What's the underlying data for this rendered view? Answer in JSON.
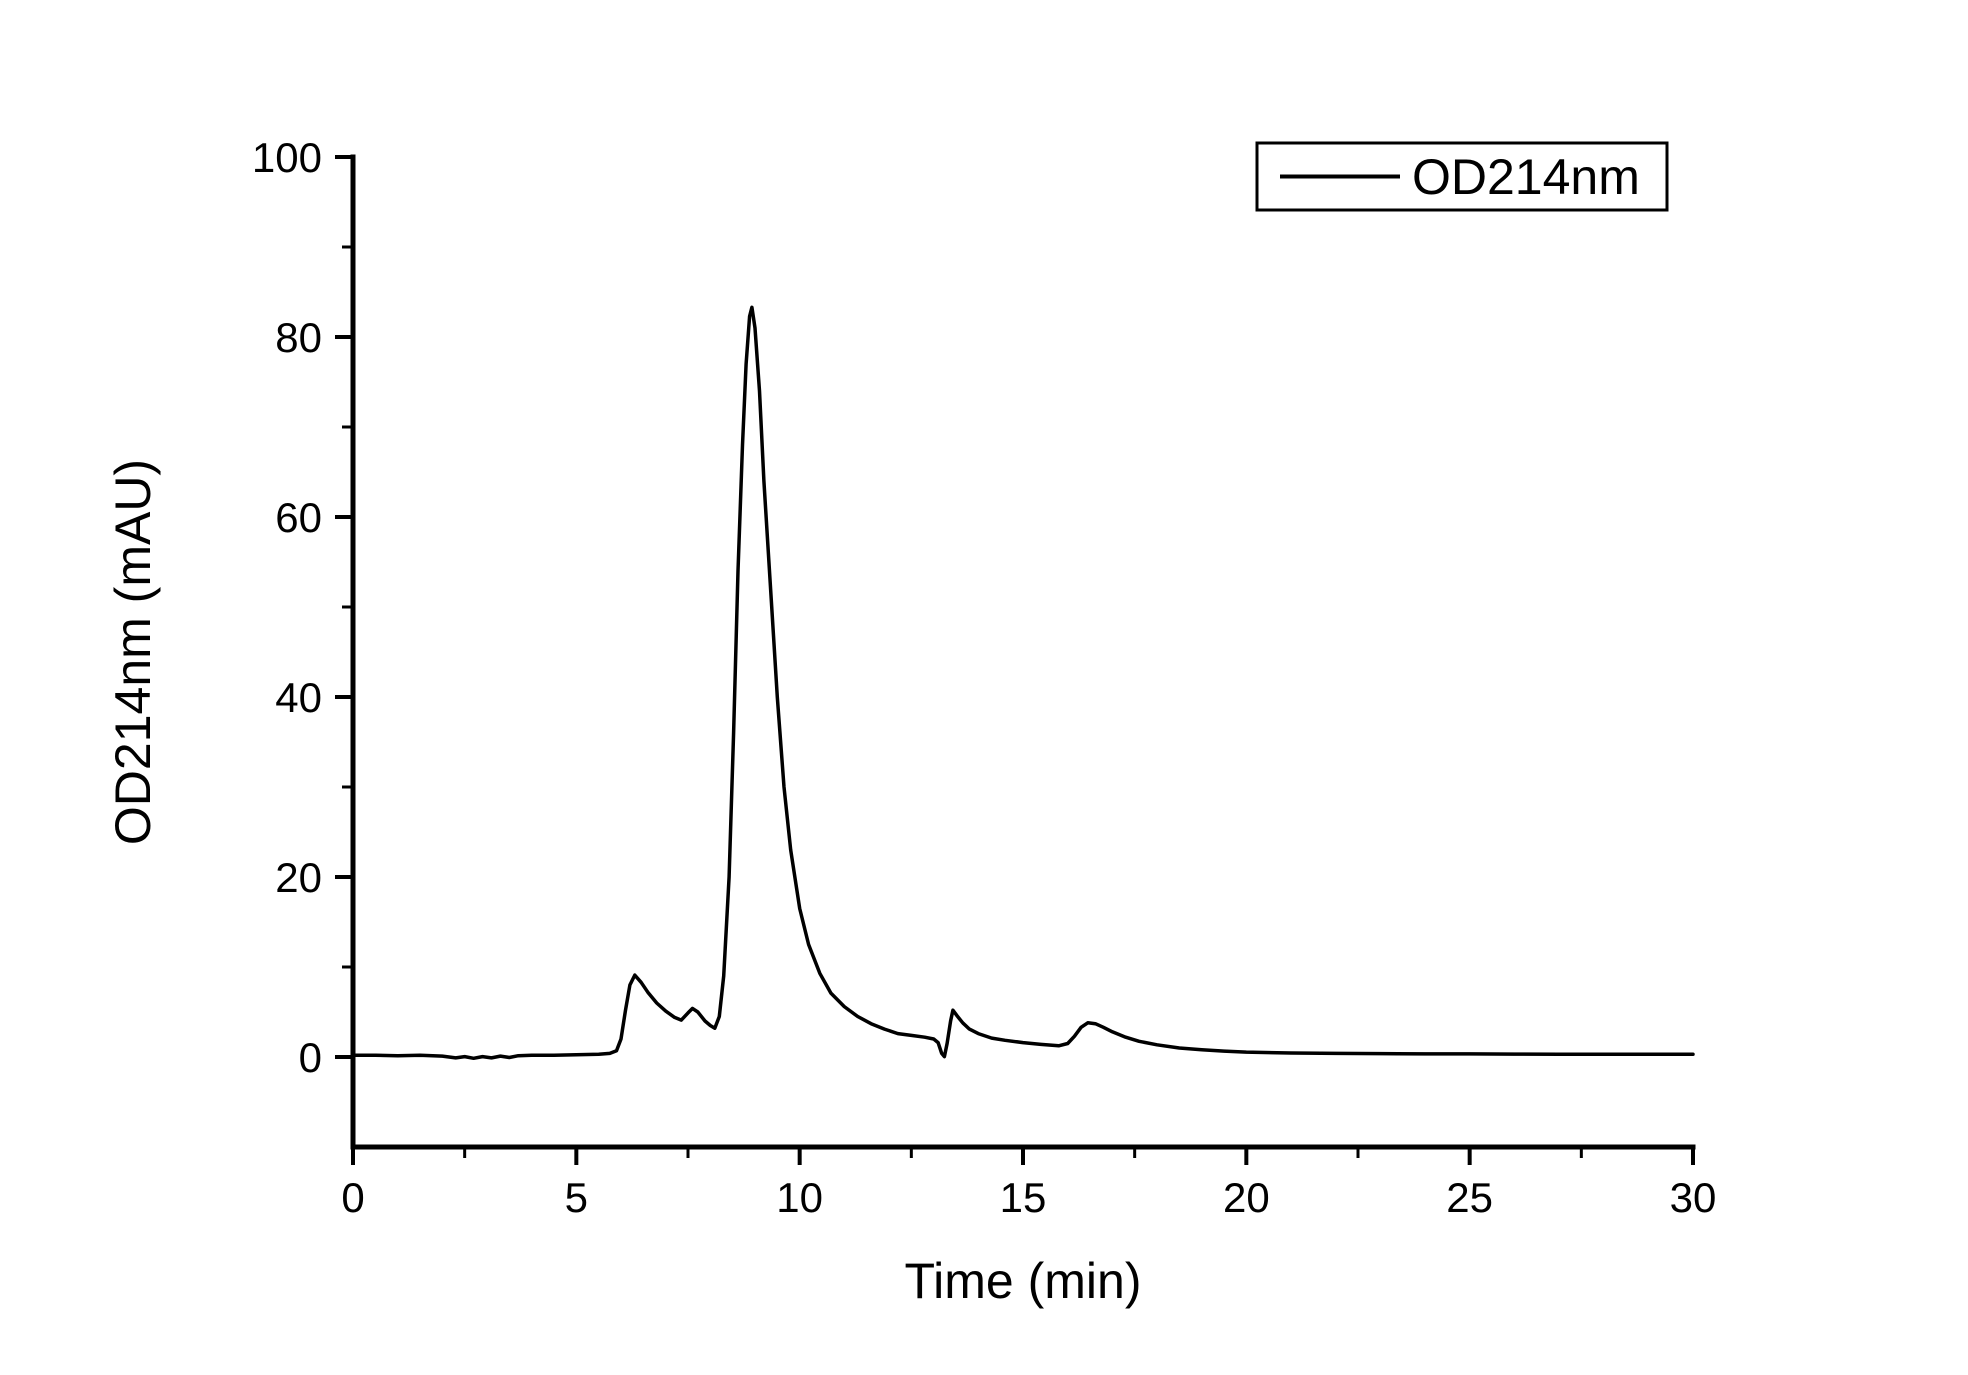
{
  "figure": {
    "background_color": "#ffffff",
    "foreground_color": "#000000"
  },
  "legend": {
    "label": "OD214nm",
    "position": "top-right"
  },
  "chart_data": {
    "type": "line",
    "title": "",
    "xlabel": "Time (min)",
    "ylabel": "OD214nm (mAU)",
    "xlim": [
      0,
      30
    ],
    "ylim": [
      -10,
      100
    ],
    "x_major_ticks": [
      0,
      5,
      10,
      15,
      20,
      25,
      30
    ],
    "x_minor_ticks": [
      2.5,
      7.5,
      12.5,
      17.5,
      22.5,
      27.5
    ],
    "y_major_ticks": [
      0,
      20,
      40,
      60,
      80,
      100
    ],
    "y_minor_ticks": [
      10,
      30,
      50,
      70,
      90
    ],
    "grid": false,
    "legend_position": "top-right",
    "series": [
      {
        "name": "OD214nm",
        "color": "#000000",
        "annotations": {
          "main_peak": {
            "time_min": 8.93,
            "value_mau": 83.3
          },
          "peak_1": {
            "time_min": 6.3,
            "value_mau": 9.1
          },
          "peak_2": {
            "time_min": 7.55,
            "value_mau": 5.4
          },
          "spike": {
            "time_min": 13.42,
            "value_mau": 5.2
          },
          "broad_bump": {
            "time_min": 16.5,
            "value_mau": 3.8
          }
        },
        "points": [
          [
            0,
            0.2
          ],
          [
            0.5,
            0.2
          ],
          [
            1.0,
            0.15
          ],
          [
            1.5,
            0.2
          ],
          [
            2.0,
            0.1
          ],
          [
            2.3,
            -0.1
          ],
          [
            2.5,
            0.05
          ],
          [
            2.7,
            -0.15
          ],
          [
            2.9,
            0.05
          ],
          [
            3.1,
            -0.1
          ],
          [
            3.3,
            0.1
          ],
          [
            3.5,
            -0.05
          ],
          [
            3.7,
            0.15
          ],
          [
            4.0,
            0.2
          ],
          [
            4.5,
            0.2
          ],
          [
            5.0,
            0.25
          ],
          [
            5.5,
            0.3
          ],
          [
            5.75,
            0.4
          ],
          [
            5.9,
            0.7
          ],
          [
            6.0,
            2.0
          ],
          [
            6.1,
            5.2
          ],
          [
            6.2,
            8.0
          ],
          [
            6.31,
            9.1
          ],
          [
            6.45,
            8.3
          ],
          [
            6.6,
            7.2
          ],
          [
            6.8,
            6.0
          ],
          [
            7.0,
            5.1
          ],
          [
            7.2,
            4.4
          ],
          [
            7.35,
            4.1
          ],
          [
            7.5,
            4.9
          ],
          [
            7.6,
            5.4
          ],
          [
            7.72,
            5.0
          ],
          [
            7.88,
            4.0
          ],
          [
            8.0,
            3.5
          ],
          [
            8.1,
            3.2
          ],
          [
            8.2,
            4.5
          ],
          [
            8.3,
            9.0
          ],
          [
            8.42,
            20.0
          ],
          [
            8.52,
            36.0
          ],
          [
            8.62,
            54.0
          ],
          [
            8.72,
            68.0
          ],
          [
            8.8,
            77.0
          ],
          [
            8.88,
            82.3
          ],
          [
            8.93,
            83.3
          ],
          [
            9.0,
            81.0
          ],
          [
            9.1,
            74.0
          ],
          [
            9.2,
            64.0
          ],
          [
            9.35,
            52.0
          ],
          [
            9.5,
            40.0
          ],
          [
            9.65,
            30.0
          ],
          [
            9.8,
            23.0
          ],
          [
            10.0,
            16.5
          ],
          [
            10.2,
            12.5
          ],
          [
            10.45,
            9.3
          ],
          [
            10.7,
            7.1
          ],
          [
            11.0,
            5.6
          ],
          [
            11.3,
            4.5
          ],
          [
            11.6,
            3.7
          ],
          [
            11.9,
            3.1
          ],
          [
            12.2,
            2.6
          ],
          [
            12.5,
            2.4
          ],
          [
            12.8,
            2.2
          ],
          [
            13.0,
            2.0
          ],
          [
            13.1,
            1.6
          ],
          [
            13.18,
            0.4
          ],
          [
            13.24,
            0.05
          ],
          [
            13.3,
            1.5
          ],
          [
            13.38,
            4.0
          ],
          [
            13.43,
            5.2
          ],
          [
            13.52,
            4.6
          ],
          [
            13.65,
            3.8
          ],
          [
            13.8,
            3.1
          ],
          [
            14.0,
            2.6
          ],
          [
            14.3,
            2.1
          ],
          [
            14.6,
            1.85
          ],
          [
            15.0,
            1.6
          ],
          [
            15.4,
            1.4
          ],
          [
            15.8,
            1.25
          ],
          [
            16.0,
            1.5
          ],
          [
            16.15,
            2.3
          ],
          [
            16.3,
            3.3
          ],
          [
            16.45,
            3.8
          ],
          [
            16.62,
            3.7
          ],
          [
            16.8,
            3.3
          ],
          [
            17.0,
            2.8
          ],
          [
            17.3,
            2.2
          ],
          [
            17.6,
            1.75
          ],
          [
            18.0,
            1.35
          ],
          [
            18.5,
            1.0
          ],
          [
            19.0,
            0.8
          ],
          [
            19.5,
            0.65
          ],
          [
            20.0,
            0.55
          ],
          [
            21.0,
            0.45
          ],
          [
            22.0,
            0.4
          ],
          [
            23.0,
            0.38
          ],
          [
            24.0,
            0.35
          ],
          [
            25.0,
            0.35
          ],
          [
            26.0,
            0.32
          ],
          [
            27.0,
            0.3
          ],
          [
            28.0,
            0.3
          ],
          [
            29.0,
            0.3
          ],
          [
            30.0,
            0.3
          ]
        ]
      }
    ]
  }
}
